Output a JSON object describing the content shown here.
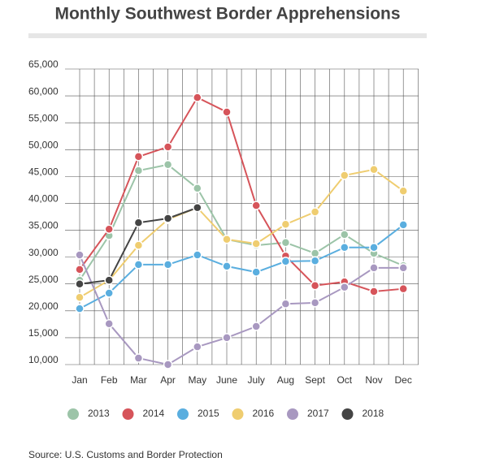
{
  "chart_data": {
    "type": "line",
    "title": "Monthly Southwest Border Apprehensions",
    "source": "Source: U.S. Customs and Border Protection",
    "categories": [
      "Jan",
      "Feb",
      "Mar",
      "Apr",
      "May",
      "June",
      "July",
      "Aug",
      "Sept",
      "Oct",
      "Nov",
      "Dec"
    ],
    "series": [
      {
        "name": "2013",
        "color": "#9cc4a8",
        "values": [
          25700,
          34000,
          46100,
          47200,
          42800,
          33300,
          32200,
          32700,
          30700,
          34200,
          30700,
          28400
        ]
      },
      {
        "name": "2014",
        "color": "#d6545a",
        "values": [
          27700,
          35200,
          48700,
          50500,
          59700,
          57000,
          39600,
          30200,
          24700,
          25400,
          23600,
          24100
        ]
      },
      {
        "name": "2015",
        "color": "#5aaedf",
        "values": [
          20400,
          23300,
          28600,
          28600,
          30400,
          28300,
          27200,
          29200,
          29300,
          31800,
          31800,
          36000
        ]
      },
      {
        "name": "2016",
        "color": "#efcd70",
        "values": [
          22500,
          25700,
          32200,
          37000,
          39200,
          33300,
          32500,
          36100,
          38400,
          45200,
          46300,
          42300
        ]
      },
      {
        "name": "2017",
        "color": "#a898c0",
        "values": [
          30400,
          17600,
          11200,
          10000,
          13300,
          15000,
          17100,
          21300,
          21500,
          24400,
          28000,
          28000
        ]
      },
      {
        "name": "2018",
        "color": "#444444",
        "values": [
          25000,
          25700,
          36400,
          37200,
          39200,
          null,
          null,
          null,
          null,
          null,
          null,
          null
        ]
      }
    ],
    "ylim": [
      10000,
      65000
    ],
    "yticks": [
      {
        "value": 10000,
        "label": "10,000"
      },
      {
        "value": 15000,
        "label": "15,000"
      },
      {
        "value": 20000,
        "label": "20,000"
      },
      {
        "value": 25000,
        "label": "25,000"
      },
      {
        "value": 30000,
        "label": "30,000"
      },
      {
        "value": 35000,
        "label": "35,000"
      },
      {
        "value": 40000,
        "label": "40,000"
      },
      {
        "value": 45000,
        "label": "45,000"
      },
      {
        "value": 50000,
        "label": "50,000"
      },
      {
        "value": 55000,
        "label": "55,000"
      },
      {
        "value": 60000,
        "label": "60,000"
      },
      {
        "value": 65000,
        "label": "65,000"
      }
    ],
    "grid": true
  }
}
